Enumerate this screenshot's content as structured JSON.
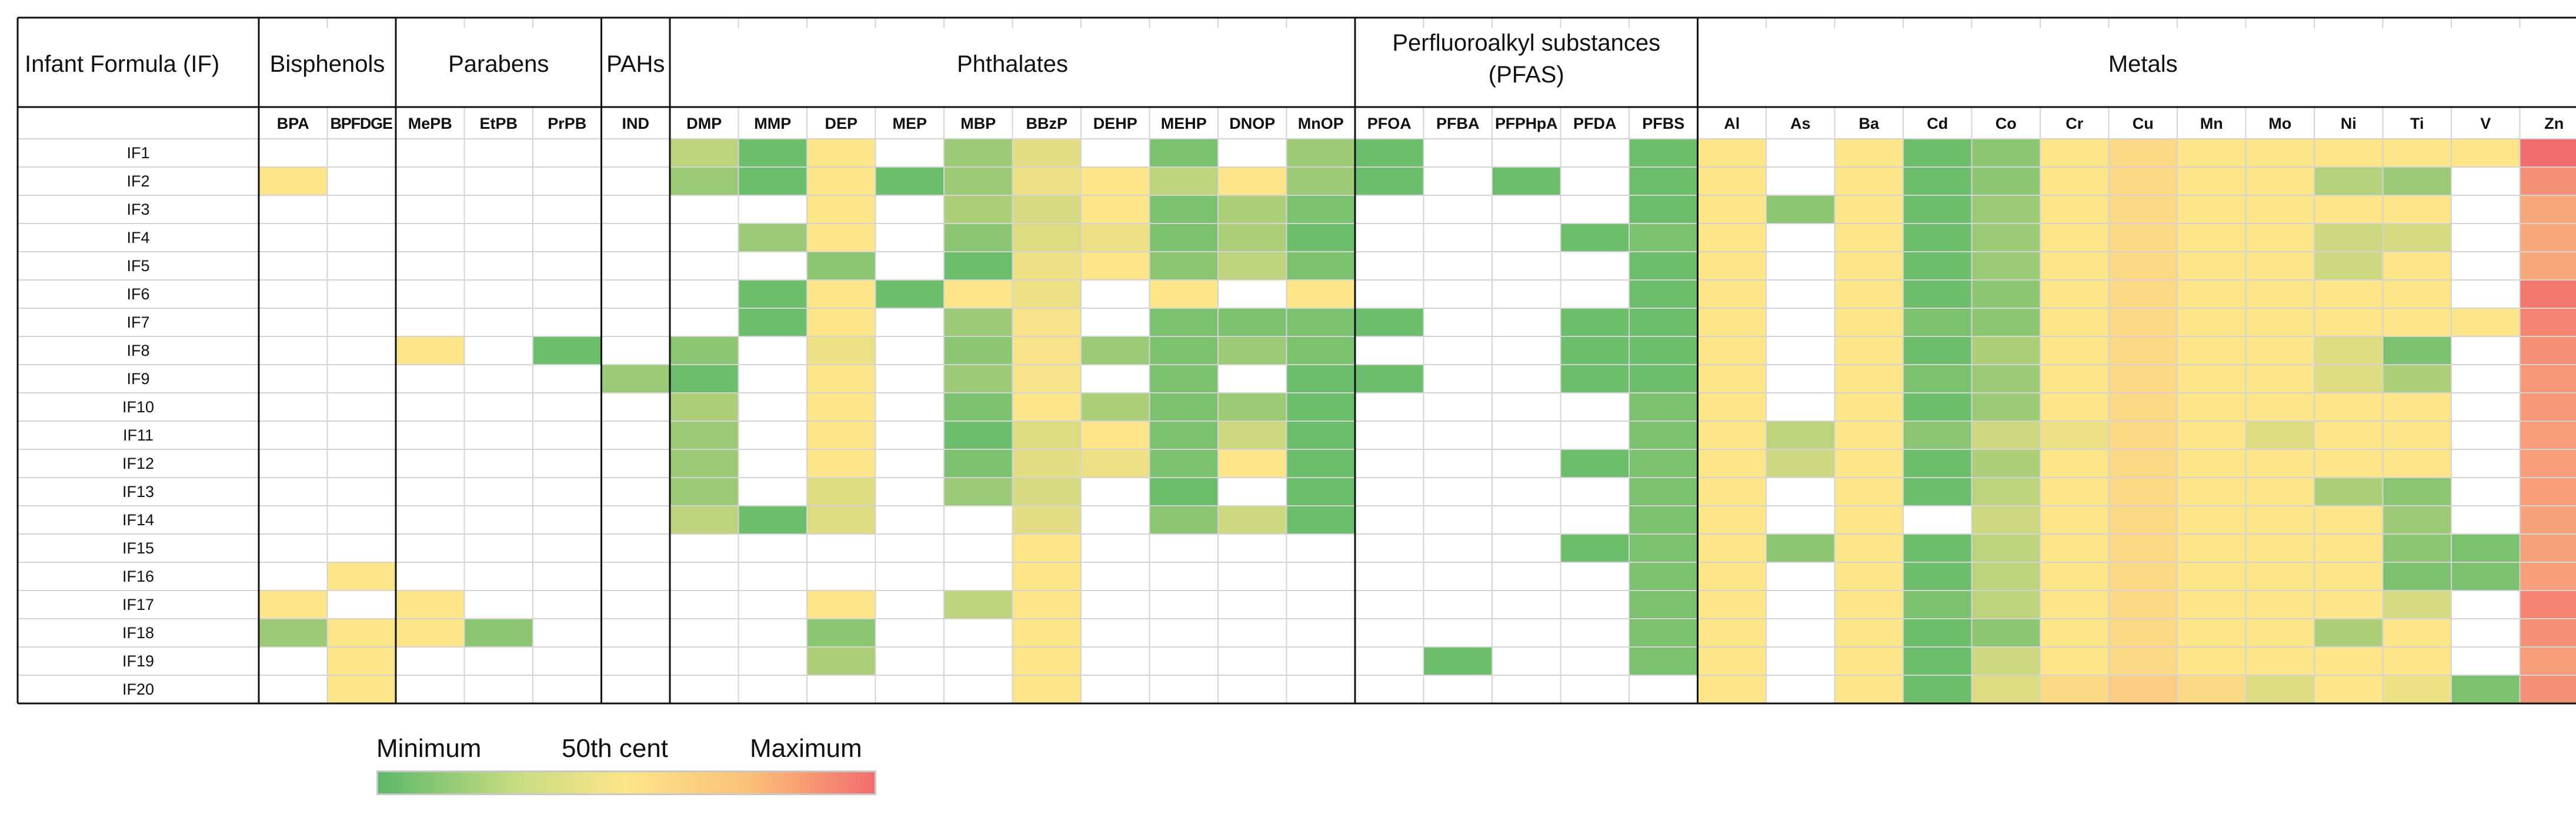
{
  "header": {
    "row_label_title": "Infant Formula (IF)",
    "groups": [
      {
        "label": "Bisphenols",
        "columns": [
          "BPA",
          "BPFDGE"
        ]
      },
      {
        "label": "Parabens",
        "columns": [
          "MePB",
          "EtPB",
          "PrPB"
        ]
      },
      {
        "label": "PAHs",
        "columns": [
          "IND"
        ]
      },
      {
        "label": "Phthalates",
        "columns": [
          "DMP",
          "MMP",
          "DEP",
          "MEP",
          "MBP",
          "BBzP",
          "DEHP",
          "MEHP",
          "DNOP",
          "MnOP"
        ]
      },
      {
        "label": "Perfluoroalkyl substances",
        "label_line2": "(PFAS)",
        "columns": [
          "PFOA",
          "PFBA",
          "PFPHpA",
          "PFDA",
          "PFBS"
        ]
      },
      {
        "label": "Metals",
        "columns": [
          "Al",
          "As",
          "Ba",
          "Cd",
          "Co",
          "Cr",
          "Cu",
          "Mn",
          "Mo",
          "Ni",
          "Ti",
          "V",
          "Zn"
        ]
      }
    ]
  },
  "legend": {
    "min_label": "Minimum",
    "mid_label": "50th cent",
    "max_label": "Maximum"
  },
  "chart_data": {
    "type": "heatmap",
    "scale": {
      "min_color": "#5cb869",
      "mid_color": "#fde58a",
      "max_color": "#f26d6d",
      "empty_color": "#ffffff",
      "note_null": "blank cell"
    },
    "rows": [
      "IF1",
      "IF2",
      "IF3",
      "IF4",
      "IF5",
      "IF6",
      "IF7",
      "IF8",
      "IF9",
      "IF10",
      "IF11",
      "IF12",
      "IF13",
      "IF14",
      "IF15",
      "IF16",
      "IF17",
      "IF18",
      "IF19",
      "IF20"
    ],
    "columns": [
      "BPA",
      "BPFDGE",
      "MePB",
      "EtPB",
      "PrPB",
      "IND",
      "DMP",
      "MMP",
      "DEP",
      "MEP",
      "MBP",
      "BBzP",
      "DEHP",
      "MEHP",
      "DNOP",
      "MnOP",
      "PFOA",
      "PFBA",
      "PFPHpA",
      "PFDA",
      "PFBS",
      "Al",
      "As",
      "Ba",
      "Cd",
      "Co",
      "Cr",
      "Cu",
      "Mn",
      "Mo",
      "Ni",
      "Ti",
      "V",
      "Zn"
    ],
    "values": [
      [
        null,
        null,
        null,
        null,
        null,
        null,
        0.3,
        0.05,
        0.5,
        null,
        0.2,
        0.42,
        null,
        0.1,
        null,
        0.2,
        0.05,
        null,
        null,
        null,
        0.05,
        0.5,
        null,
        0.5,
        0.05,
        0.15,
        0.5,
        0.55,
        0.5,
        0.5,
        0.5,
        0.5,
        0.5,
        1.0
      ],
      [
        0.5,
        null,
        null,
        null,
        null,
        null,
        0.2,
        0.05,
        0.5,
        0.05,
        0.2,
        0.45,
        0.5,
        0.3,
        0.5,
        0.2,
        0.05,
        null,
        0.05,
        null,
        0.05,
        0.5,
        null,
        0.5,
        0.05,
        0.15,
        0.5,
        0.55,
        0.5,
        0.5,
        0.28,
        0.2,
        null,
        0.85
      ],
      [
        null,
        null,
        null,
        null,
        null,
        null,
        null,
        null,
        0.5,
        null,
        0.25,
        0.38,
        0.5,
        0.1,
        0.25,
        0.1,
        null,
        null,
        null,
        null,
        0.05,
        0.5,
        0.15,
        0.5,
        0.05,
        0.2,
        0.5,
        0.55,
        0.5,
        0.5,
        0.5,
        0.5,
        null,
        0.75
      ],
      [
        null,
        null,
        null,
        null,
        null,
        null,
        null,
        0.2,
        0.5,
        null,
        0.15,
        0.4,
        0.45,
        0.1,
        0.25,
        0.05,
        null,
        null,
        null,
        0.05,
        0.1,
        0.5,
        null,
        0.5,
        0.05,
        0.2,
        0.5,
        0.55,
        0.5,
        0.5,
        0.35,
        0.38,
        null,
        0.75
      ],
      [
        null,
        null,
        null,
        null,
        null,
        null,
        null,
        null,
        0.15,
        null,
        0.05,
        0.45,
        0.5,
        0.15,
        0.3,
        0.1,
        null,
        null,
        null,
        null,
        0.05,
        0.5,
        null,
        0.5,
        0.05,
        0.2,
        0.5,
        0.55,
        0.5,
        0.5,
        0.35,
        0.5,
        null,
        0.75
      ],
      [
        null,
        null,
        null,
        null,
        null,
        null,
        null,
        0.05,
        0.5,
        0.05,
        0.5,
        0.45,
        null,
        0.5,
        null,
        0.5,
        null,
        null,
        null,
        null,
        0.05,
        0.5,
        null,
        0.5,
        0.05,
        0.15,
        0.5,
        0.55,
        0.5,
        0.5,
        0.5,
        0.5,
        null,
        0.95
      ],
      [
        null,
        null,
        null,
        null,
        null,
        null,
        null,
        0.05,
        0.5,
        null,
        0.2,
        0.48,
        null,
        0.1,
        0.1,
        0.1,
        0.05,
        null,
        null,
        0.05,
        0.05,
        0.5,
        null,
        0.5,
        0.1,
        0.15,
        0.5,
        0.55,
        0.5,
        0.5,
        0.5,
        0.5,
        0.5,
        0.9
      ],
      [
        null,
        null,
        0.5,
        null,
        0.05,
        null,
        0.15,
        null,
        0.45,
        null,
        0.15,
        0.48,
        0.2,
        0.1,
        0.2,
        0.1,
        null,
        null,
        null,
        0.05,
        0.05,
        0.5,
        null,
        0.5,
        0.05,
        0.25,
        0.5,
        0.55,
        0.5,
        0.5,
        0.4,
        0.1,
        null,
        0.85
      ],
      [
        null,
        null,
        null,
        null,
        null,
        0.2,
        0.05,
        null,
        0.5,
        null,
        0.2,
        0.48,
        null,
        0.1,
        null,
        0.05,
        0.05,
        null,
        null,
        0.05,
        0.05,
        0.5,
        null,
        0.5,
        0.1,
        0.2,
        0.5,
        0.55,
        0.5,
        0.5,
        0.4,
        0.25,
        null,
        0.82
      ],
      [
        null,
        null,
        null,
        null,
        null,
        null,
        0.25,
        null,
        0.5,
        null,
        0.1,
        0.5,
        0.25,
        0.1,
        0.2,
        0.05,
        null,
        null,
        null,
        null,
        0.1,
        0.5,
        null,
        0.5,
        0.05,
        0.2,
        0.5,
        0.55,
        0.5,
        0.5,
        0.5,
        0.5,
        null,
        0.82
      ],
      [
        null,
        null,
        null,
        null,
        null,
        null,
        0.2,
        null,
        0.5,
        null,
        0.05,
        0.4,
        0.5,
        0.1,
        0.35,
        0.05,
        null,
        null,
        null,
        null,
        0.1,
        0.5,
        0.3,
        0.5,
        0.15,
        0.35,
        0.45,
        0.55,
        0.5,
        0.4,
        0.5,
        0.5,
        null,
        0.8
      ],
      [
        null,
        null,
        null,
        null,
        null,
        null,
        0.2,
        null,
        0.5,
        null,
        0.1,
        0.42,
        0.45,
        0.1,
        0.5,
        0.05,
        null,
        null,
        null,
        0.05,
        0.1,
        0.5,
        0.35,
        0.5,
        0.05,
        0.25,
        0.5,
        0.55,
        0.5,
        0.5,
        0.5,
        0.5,
        null,
        0.8
      ],
      [
        null,
        null,
        null,
        null,
        null,
        null,
        0.2,
        null,
        0.4,
        null,
        0.2,
        0.38,
        null,
        0.05,
        null,
        0.05,
        null,
        null,
        null,
        null,
        0.1,
        0.5,
        null,
        0.5,
        0.05,
        0.3,
        0.5,
        0.55,
        0.5,
        0.5,
        0.25,
        0.15,
        null,
        0.8
      ],
      [
        null,
        null,
        null,
        null,
        null,
        null,
        0.3,
        0.05,
        0.4,
        null,
        null,
        0.42,
        null,
        0.15,
        0.35,
        0.05,
        null,
        null,
        null,
        null,
        0.1,
        0.5,
        null,
        0.5,
        null,
        0.35,
        0.5,
        0.55,
        0.5,
        0.5,
        0.5,
        0.2,
        null,
        0.78
      ],
      [
        null,
        null,
        null,
        null,
        null,
        null,
        null,
        null,
        null,
        null,
        null,
        0.5,
        null,
        null,
        null,
        null,
        null,
        null,
        null,
        0.05,
        0.1,
        0.5,
        0.15,
        0.5,
        0.05,
        0.3,
        0.5,
        0.55,
        0.5,
        0.5,
        0.5,
        0.15,
        0.1,
        0.78
      ],
      [
        null,
        0.5,
        null,
        null,
        null,
        null,
        null,
        null,
        null,
        null,
        null,
        0.5,
        null,
        null,
        null,
        null,
        null,
        null,
        null,
        null,
        0.1,
        0.5,
        null,
        0.5,
        0.05,
        0.3,
        0.5,
        0.55,
        0.5,
        0.5,
        0.5,
        0.1,
        0.1,
        0.8
      ],
      [
        0.5,
        null,
        0.5,
        null,
        null,
        null,
        null,
        null,
        0.5,
        null,
        0.3,
        0.5,
        null,
        null,
        null,
        null,
        null,
        null,
        null,
        null,
        0.1,
        0.5,
        null,
        0.5,
        0.1,
        0.3,
        0.5,
        0.55,
        0.5,
        0.5,
        0.5,
        0.38,
        null,
        0.9
      ],
      [
        0.2,
        0.5,
        0.5,
        0.15,
        null,
        null,
        null,
        null,
        0.15,
        null,
        null,
        0.5,
        null,
        null,
        null,
        null,
        null,
        null,
        null,
        null,
        0.1,
        0.5,
        null,
        0.5,
        0.05,
        0.15,
        0.5,
        0.55,
        0.5,
        0.5,
        0.25,
        0.5,
        null,
        0.85
      ],
      [
        null,
        0.5,
        null,
        null,
        null,
        null,
        null,
        null,
        0.25,
        null,
        null,
        0.5,
        null,
        null,
        null,
        null,
        null,
        0.05,
        null,
        null,
        0.1,
        0.5,
        null,
        0.5,
        0.05,
        0.35,
        0.5,
        0.55,
        0.5,
        0.5,
        0.5,
        0.5,
        null,
        0.8
      ],
      [
        null,
        0.5,
        null,
        null,
        null,
        null,
        null,
        null,
        null,
        null,
        null,
        0.5,
        null,
        null,
        null,
        null,
        null,
        null,
        null,
        null,
        null,
        0.5,
        null,
        0.5,
        0.05,
        0.4,
        0.55,
        0.6,
        0.55,
        0.4,
        0.5,
        0.45,
        0.1,
        0.85
      ]
    ]
  }
}
